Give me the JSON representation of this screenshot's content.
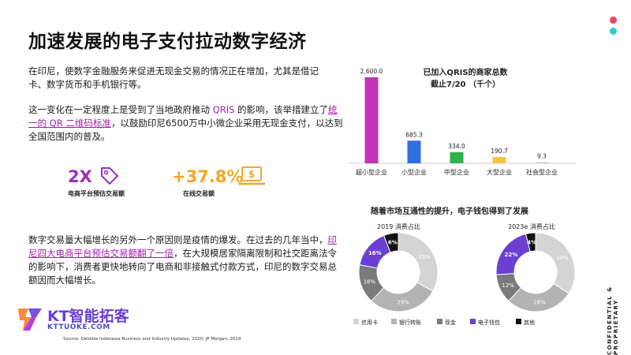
{
  "title": "加速发展的电子支付拉动数字经济",
  "para1": "在印尼，使数字金融服务来促进无现金交易的情况正在增加，尤其是借记卡、数字货币和手机银行等。",
  "para2": {
    "t1": "这一变化在一定程度上是受到了当地政府推动 ",
    "hl1": "QRIS",
    "t2": " 的影响，该举措建立了",
    "hl2": "统一的 QR 二维码标准",
    "t3": "，以鼓励印尼6500万中小微企业采用无现金支付，以达到全国范围内的普及。"
  },
  "stats": [
    {
      "value": "2X",
      "label": "电商平台预估交易额",
      "icon": "tag-icon",
      "color": "#9b2fbf"
    },
    {
      "value": "+37.8%",
      "label": "在线交易额",
      "icon": "laptop-dollar-icon",
      "color": "#f5a623"
    }
  ],
  "para3": {
    "t1": "数字交易量大幅增长的另外一个原因则是疫情的爆发。在过去的几年当中，",
    "hl": "印尼四大电商平台预估交易额翻了一倍",
    "t2": "，在大规模居家隔离限制和社交距离法令的影响下，消费者更快地转向了电商和非接触式付款方式，印尼的数字交易总额因而大幅增长。"
  },
  "logo": {
    "name": "KT智能拓客",
    "url": "KTTUOKE.COM"
  },
  "source": "Source: Deloitte Indonesia Business and Industry Updates, 2020; JP Morgan, 2019",
  "side_text": "CONFIDENTIAL & PROPRIETARY",
  "chart_data": [
    {
      "type": "bar",
      "title": "已加入QRIS的商家总数截止7/20 （千个）",
      "title_line1": "已加入QRIS的商家总数",
      "title_line2": "截止7/20 （千个）",
      "categories": [
        "超小型企业",
        "小型企业",
        "中型企业",
        "大型企业",
        "社会型企业"
      ],
      "values": [
        2600.0,
        685.3,
        334.0,
        190.7,
        9.3
      ],
      "value_labels": [
        "2,600.0",
        "685.3",
        "334.0",
        "190.7",
        "9.3"
      ],
      "colors": [
        "#c233b6",
        "#2f6fe0",
        "#2fb34a",
        "#f7c341",
        "#cfcfcf"
      ]
    },
    {
      "type": "pie",
      "subtitle": "随着市场互通性的提升，电子钱包得到了发展",
      "legend": [
        {
          "name": "信用卡",
          "color": "#d4d4d4"
        },
        {
          "name": "银行转账",
          "color": "#b3b3b3"
        },
        {
          "name": "现金",
          "color": "#7a7a7a"
        },
        {
          "name": "电子钱包",
          "color": "#6a3fd1"
        },
        {
          "name": "其他",
          "color": "#111111"
        }
      ],
      "charts": [
        {
          "title": "2019 消费占比",
          "slices": [
            {
              "name": "信用卡",
              "value": 33,
              "label": "33%"
            },
            {
              "name": "银行转账",
              "value": 29,
              "label": "29%"
            },
            {
              "name": "现金",
              "value": 16,
              "label": "16%"
            },
            {
              "name": "电子钱包",
              "value": 16,
              "label": "16%"
            },
            {
              "name": "其他",
              "value": 6,
              "label": "6%"
            }
          ]
        },
        {
          "title": "2023e 消费占比",
          "slices": [
            {
              "name": "信用卡",
              "value": 34,
              "label": "34%"
            },
            {
              "name": "银行转账",
              "value": 28,
              "label": "28%"
            },
            {
              "name": "现金",
              "value": 12,
              "label": "12%"
            },
            {
              "name": "电子钱包",
              "value": 22,
              "label": "22%"
            },
            {
              "name": "其他",
              "value": 4,
              "label": "4%"
            }
          ]
        }
      ]
    }
  ]
}
